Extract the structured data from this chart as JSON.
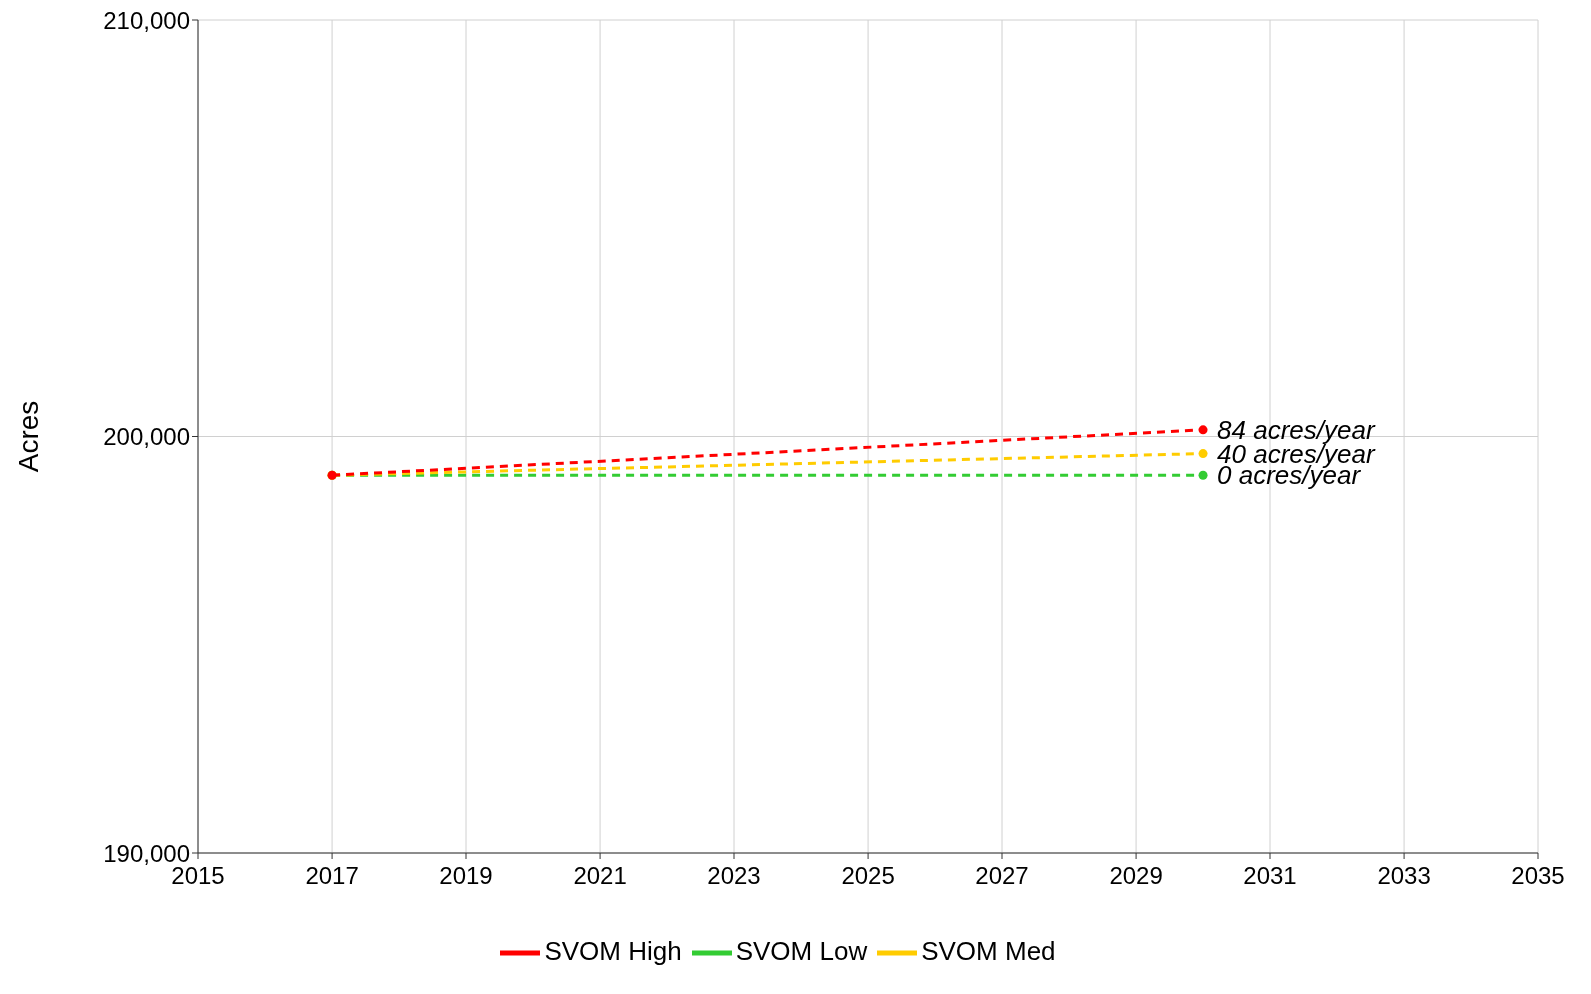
{
  "chart_data": {
    "type": "line",
    "ylabel": "Acres",
    "xlim": [
      "2015",
      "2035"
    ],
    "xticks": [
      "2015",
      "2017",
      "2019",
      "2021",
      "2023",
      "2025",
      "2027",
      "2029",
      "2031",
      "2033",
      "2035"
    ],
    "ylim": [
      190000,
      210000
    ],
    "yticks": [
      {
        "value": 190000,
        "label": "190,000"
      },
      {
        "value": 200000,
        "label": "200,000"
      },
      {
        "value": 210000,
        "label": "210,000"
      }
    ],
    "grid": true,
    "legend": "bottom",
    "marker": "circle",
    "line_style": "dashed",
    "series": [
      {
        "name": "SVOM Low",
        "color": "#33cc33",
        "x": [
          "2017",
          "2030"
        ],
        "values": [
          199070,
          199070
        ]
      },
      {
        "name": "SVOM Med",
        "color": "#ffcc00",
        "x": [
          "2017",
          "2030"
        ],
        "values": [
          199070,
          199590
        ]
      },
      {
        "name": "SVOM High",
        "color": "#ff0000",
        "x": [
          "2017",
          "2030"
        ],
        "values": [
          199070,
          200160
        ]
      }
    ],
    "annotations": [
      {
        "text": "84 acres/year",
        "x": "2030",
        "y": 200160
      },
      {
        "text": "40 acres/year",
        "x": "2030",
        "y": 199590
      },
      {
        "text": "0 acres/year",
        "x": "2030",
        "y": 199070
      }
    ]
  }
}
